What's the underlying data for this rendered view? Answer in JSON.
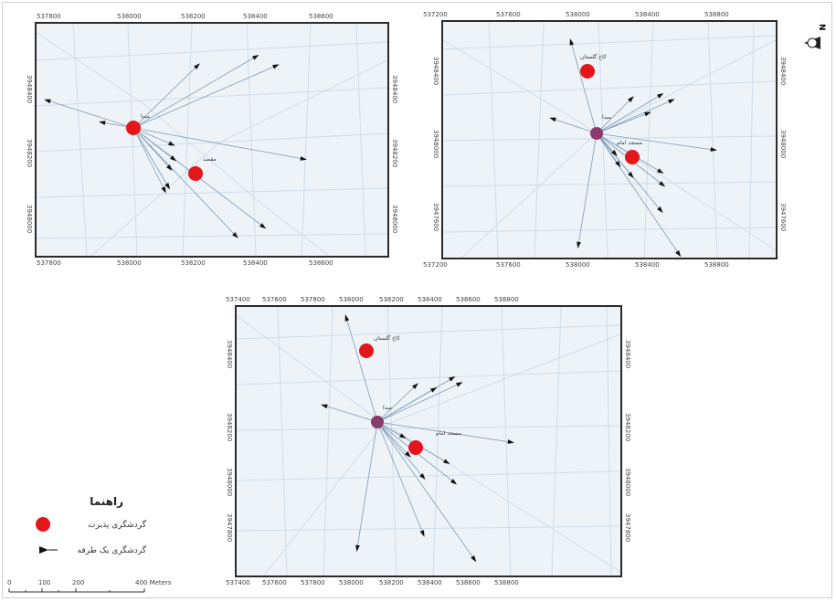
{
  "maps": [
    {
      "id": "map-1",
      "x_ticks": [
        "537800",
        "538000",
        "538200",
        "538400",
        "538600"
      ],
      "y_ticks": [
        "3948400",
        "3948200",
        "3948000"
      ],
      "origin_label": "مبدا",
      "sites": [
        {
          "label": ""
        },
        {
          "label": "مقصد"
        }
      ]
    },
    {
      "id": "map-2",
      "x_ticks": [
        "537200",
        "537600",
        "538000",
        "538400",
        "538800"
      ],
      "y_ticks": [
        "3948400",
        "3948000",
        "3947600"
      ],
      "origin_label": "مبدا",
      "sites": [
        {
          "label": "کاخ گلستان"
        },
        {
          "label": "مسجد امام"
        }
      ]
    },
    {
      "id": "map-3",
      "x_ticks": [
        "537400",
        "537600",
        "537800",
        "538000",
        "538200",
        "538400",
        "538600",
        "538800"
      ],
      "y_ticks": [
        "3948400",
        "3948200",
        "3948000",
        "3947800"
      ],
      "origin_label": "مبدا",
      "sites": [
        {
          "label": "کاخ گلستان"
        },
        {
          "label": "مسجد امام"
        }
      ]
    }
  ],
  "legend": {
    "title": "راهنما",
    "items": [
      {
        "label": "گردشگری پذیرت",
        "color": "#e3161b"
      },
      {
        "label": "گردشگری یک طرفه",
        "color": "#111111"
      }
    ]
  },
  "scale": {
    "labels": [
      "0",
      "100",
      "200",
      "400 Meters"
    ]
  },
  "north": {
    "label": "N"
  }
}
